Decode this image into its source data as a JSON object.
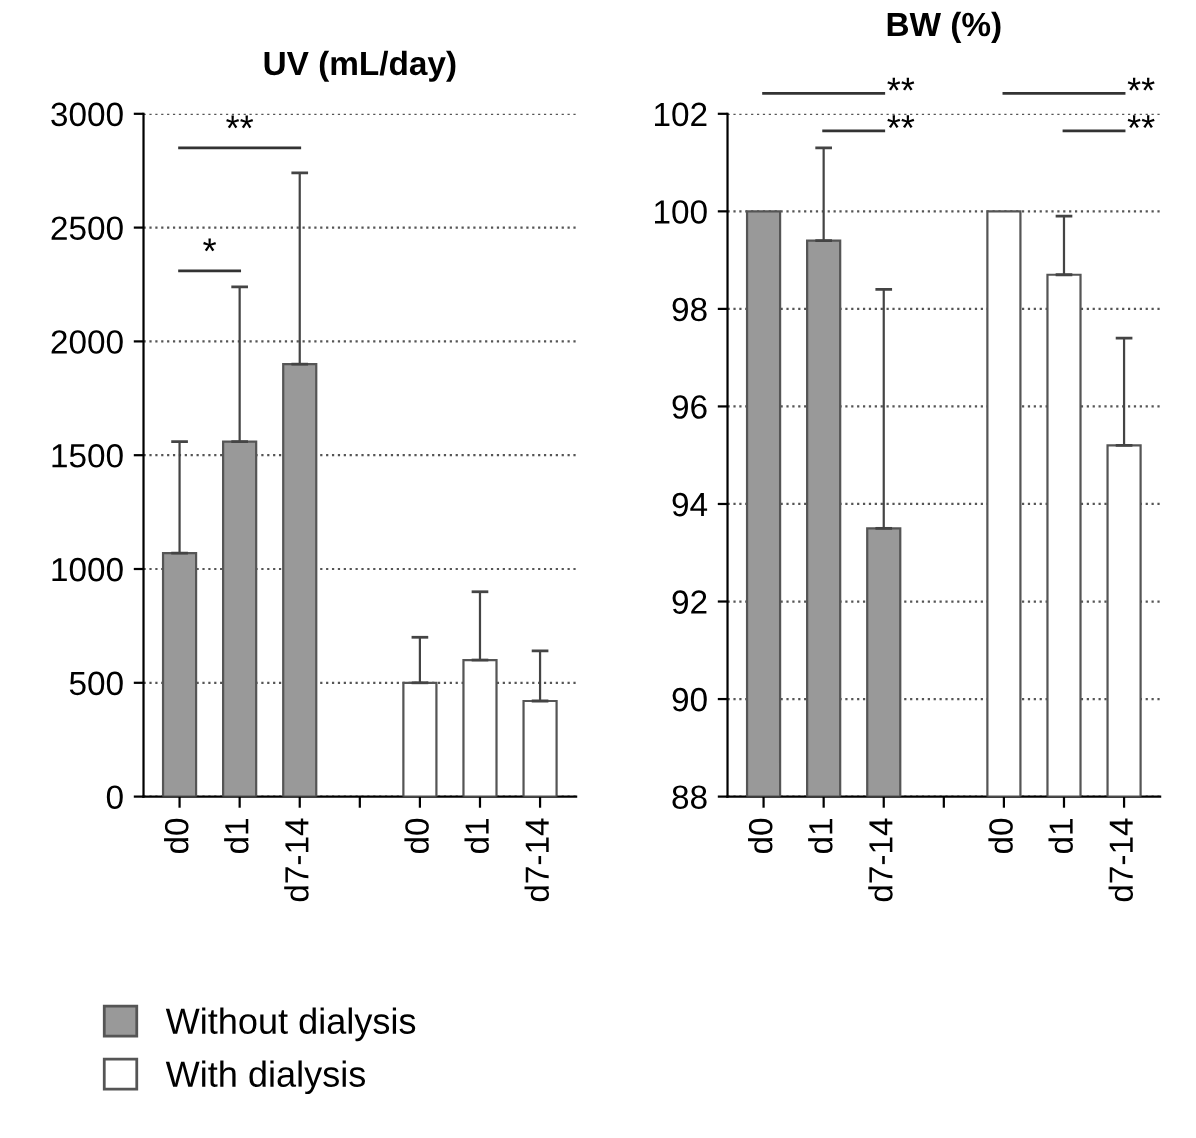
{
  "chart_data": [
    {
      "type": "bar",
      "title": "UV (mL/day)",
      "categories": [
        "d0",
        "d1",
        "d7-14",
        null,
        "d0",
        "d1",
        "d7-14"
      ],
      "series": [
        {
          "name": "Without dialysis",
          "color": "#999999",
          "values": [
            1070,
            1560,
            1900,
            null,
            null,
            null,
            null
          ],
          "errors": [
            [
              1070,
              1560
            ],
            [
              1560,
              2240
            ],
            [
              1900,
              2740
            ],
            null,
            null,
            null,
            null
          ]
        },
        {
          "name": "With dialysis",
          "color": "#ffffff",
          "values": [
            null,
            null,
            null,
            null,
            500,
            600,
            420
          ],
          "errors": [
            null,
            null,
            null,
            null,
            [
              500,
              700
            ],
            [
              600,
              900
            ],
            [
              420,
              640
            ]
          ]
        }
      ],
      "ylim": [
        0,
        3000
      ],
      "yticks": [
        0,
        500,
        1000,
        1500,
        2000,
        2500,
        3000
      ],
      "grid": "y",
      "legend": "bottom",
      "annotations": [
        "*",
        "**"
      ]
    },
    {
      "type": "bar",
      "title": "BW (%)",
      "categories": [
        "d0",
        "d1",
        "d7-14",
        null,
        "d0",
        "d1",
        "d7-14"
      ],
      "series": [
        {
          "color": "#999999",
          "values": [
            100,
            99.4,
            93.5,
            null,
            null,
            null,
            null
          ],
          "errors": [
            null,
            [
              99.4,
              101.3
            ],
            [
              93.5,
              98.4
            ],
            null,
            null,
            null,
            null
          ]
        },
        {
          "color": "#ffffff",
          "values": [
            null,
            null,
            null,
            null,
            100,
            98.7,
            95.2
          ],
          "errors": [
            null,
            null,
            null,
            null,
            null,
            [
              98.7,
              99.9
            ],
            [
              95.2,
              97.4
            ]
          ]
        }
      ],
      "ylim": [
        88,
        102
      ],
      "yticks": [
        88,
        90,
        92,
        94,
        96,
        98,
        100,
        102
      ],
      "grid": "y",
      "annotations": [
        "**",
        "**",
        "**",
        "**"
      ]
    }
  ]
}
